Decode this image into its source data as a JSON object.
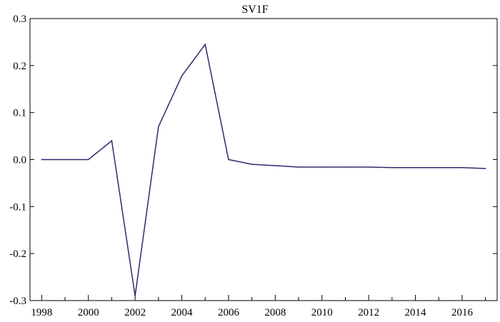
{
  "chart_data": {
    "type": "line",
    "title": "SV1F",
    "xlabel": "",
    "ylabel": "",
    "x_tick_labels": [
      "1998",
      "2000",
      "2002",
      "2004",
      "2006",
      "2008",
      "2010",
      "2012",
      "2014",
      "2016"
    ],
    "y_tick_labels": [
      "0.3",
      "0.2",
      "0.1",
      "0.0",
      "-0.1",
      "-0.2",
      "-0.3"
    ],
    "xlim": [
      1997.5,
      2017.5
    ],
    "ylim": [
      -0.3,
      0.3
    ],
    "grid": false,
    "legend": "none",
    "series": [
      {
        "color": "#2e2a6e",
        "x": [
          1998,
          1999,
          2000,
          2001,
          2002,
          2003,
          2004,
          2005,
          2006,
          2007,
          2008,
          2009,
          2010,
          2011,
          2012,
          2013,
          2014,
          2015,
          2016,
          2017
        ],
        "values": [
          0.0,
          0.0,
          0.0,
          0.04,
          -0.29,
          0.07,
          0.178,
          0.245,
          0.0,
          -0.01,
          -0.013,
          -0.016,
          -0.016,
          -0.016,
          -0.016,
          -0.017,
          -0.017,
          -0.017,
          -0.017,
          -0.019
        ]
      }
    ]
  }
}
